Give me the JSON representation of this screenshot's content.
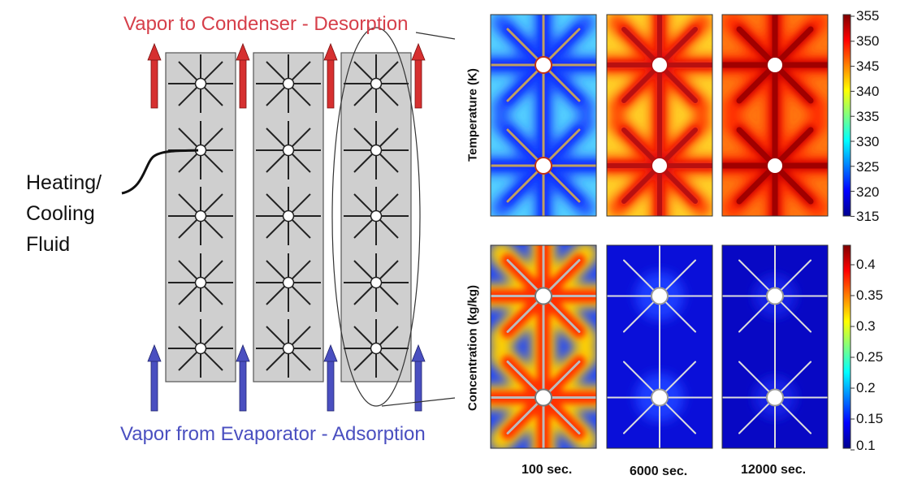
{
  "diagram": {
    "top_title": "Vapor to Condenser - Desorption",
    "bottom_title": "Vapor from Evaporator - Adsorption",
    "fluid_label": [
      "Heating/",
      "Cooling",
      "Fluid"
    ],
    "beds": 3,
    "tubes_per_bed": 5
  },
  "panels": {
    "times": [
      "100 sec.",
      "6000 sec.",
      "12000 sec."
    ],
    "temperature": {
      "ylabel": "Temperature (K)",
      "ticks": [
        "355",
        "350",
        "345",
        "340",
        "335",
        "330",
        "325",
        "320",
        "315"
      ]
    },
    "concentration": {
      "ylabel": "Concentration (kg/kg)",
      "ticks": [
        "0.4",
        "0.35",
        "0.3",
        "0.25",
        "0.2",
        "0.15",
        "0.1"
      ]
    }
  },
  "colors": {
    "desorption_arrow": "#d63030",
    "adsorption_arrow": "#4a4fc0",
    "bed_fill": "#cfcfcf"
  }
}
